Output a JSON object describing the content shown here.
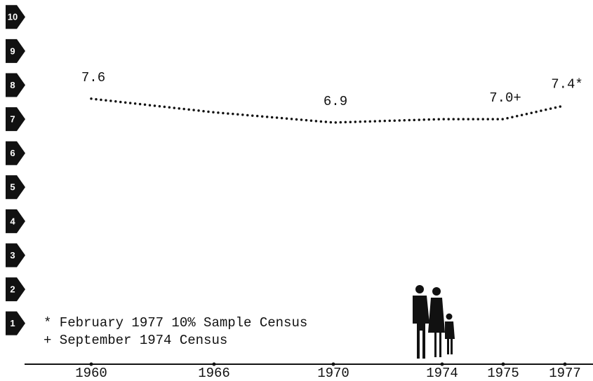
{
  "chart_data": {
    "type": "line",
    "categories": [
      "1960",
      "1966",
      "1970",
      "1974",
      "1975",
      "1977"
    ],
    "series": [
      {
        "color": "#111111",
        "values": [
          7.6,
          7.2,
          6.9,
          7.0,
          7.0,
          7.4
        ],
        "value_labels": [
          "7.6",
          null,
          "6.9",
          null,
          "7.0+",
          "7.4*"
        ]
      }
    ],
    "ylim": [
      -0.2,
      10.5
    ],
    "yticks": [
      1,
      2,
      3,
      4,
      5,
      6,
      7,
      8,
      9,
      10
    ],
    "annotations": [
      "* February 1977 10% Sample Census",
      "+ September 1974 Census"
    ]
  }
}
